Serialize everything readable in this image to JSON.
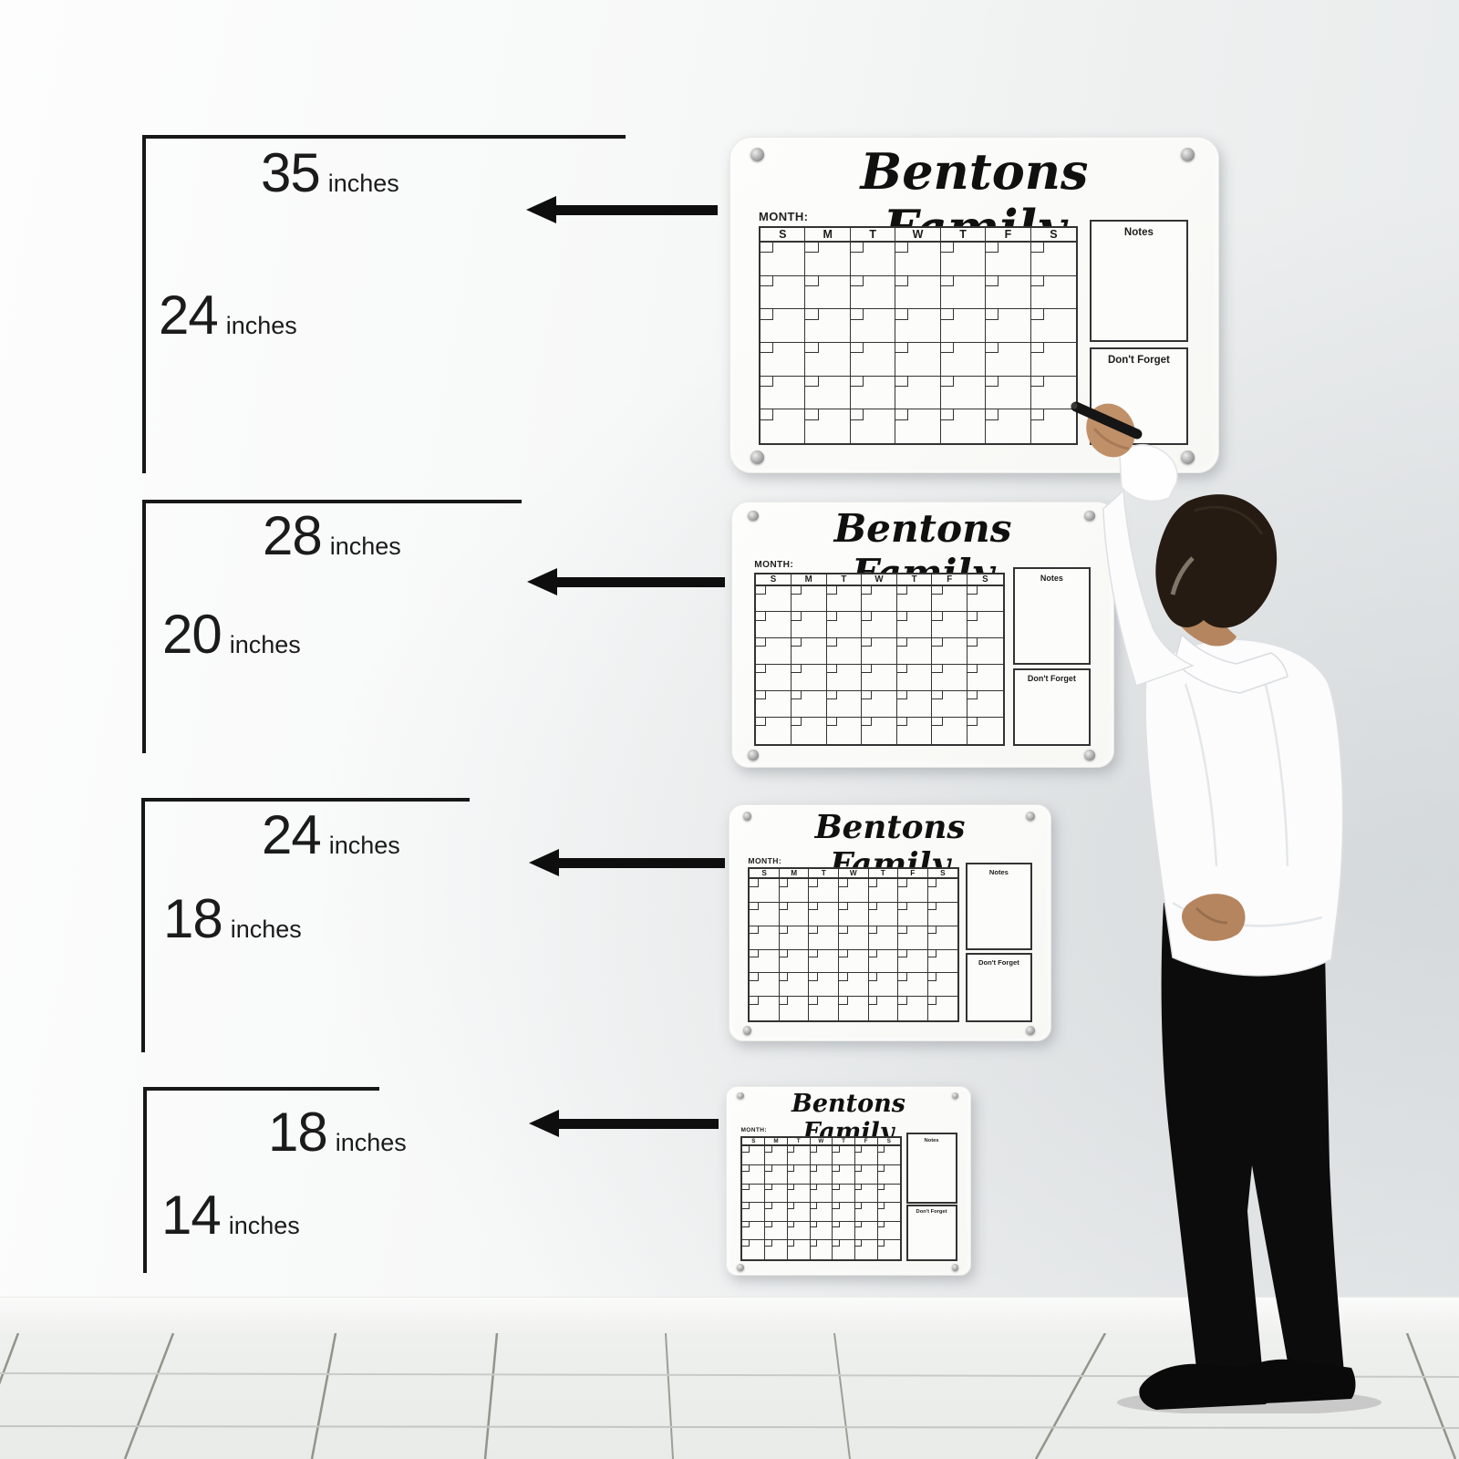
{
  "calendar_board": {
    "title": "Bentons Family",
    "month_label": "MONTH:",
    "day_headers": [
      "S",
      "M",
      "T",
      "W",
      "T",
      "F",
      "S"
    ],
    "weeks": 6,
    "days_per_week": 7,
    "notes_label": "Notes",
    "dont_forget_label": "Don't Forget"
  },
  "sizes": [
    {
      "width_in": "35",
      "height_in": "24",
      "unit": "inches"
    },
    {
      "width_in": "28",
      "height_in": "20",
      "unit": "inches"
    },
    {
      "width_in": "24",
      "height_in": "18",
      "unit": "inches"
    },
    {
      "width_in": "18",
      "height_in": "14",
      "unit": "inches"
    }
  ],
  "icons": {
    "arrow": "left-arrow-icon",
    "screw": "screw-icon"
  },
  "colors": {
    "annotation_black": "#171717",
    "board_line": "#333333",
    "board_background": "#fbfbf9",
    "wall": "#f2f3f4",
    "floor": "#edefec",
    "shirt": "#fcfcfd",
    "pants": "#0c0c0c",
    "skin": "#b5855f",
    "hair": "#251b12"
  }
}
